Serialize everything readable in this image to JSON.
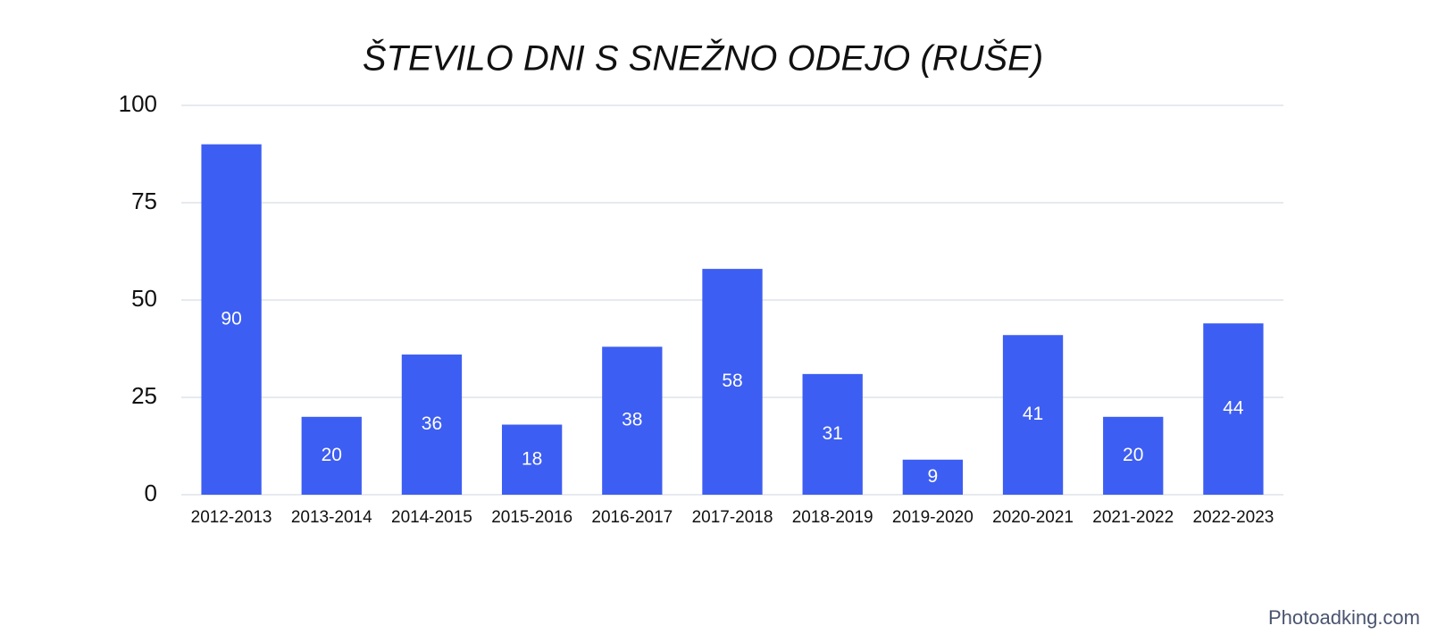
{
  "chart_data": {
    "type": "bar",
    "title": "ŠTEVILO DNI S SNEŽNO ODEJO (RUŠE)",
    "categories": [
      "2012-2013",
      "2013-2014",
      "2014-2015",
      "2015-2016",
      "2016-2017",
      "2017-2018",
      "2018-2019",
      "2019-2020",
      "2020-2021",
      "2021-2022",
      "2022-2023"
    ],
    "values": [
      90,
      20,
      36,
      18,
      38,
      58,
      31,
      9,
      41,
      20,
      44
    ],
    "color": "#3d5ef2",
    "ylim": [
      0,
      100
    ],
    "yticks": [
      0,
      25,
      50,
      75,
      100
    ],
    "grid": true
  },
  "watermark": "Photoadking.com"
}
